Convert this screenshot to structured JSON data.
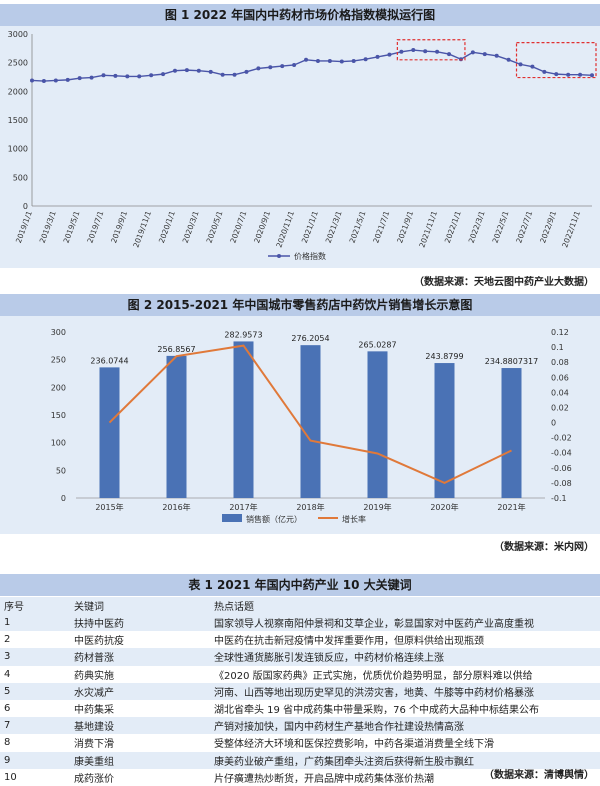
{
  "fig1": {
    "title": "图 1   2022 年国内中药材市场价格指数模拟运行图",
    "source": "（数据来源：天地云图中药产业大数据）",
    "legend": "价格指数"
  },
  "fig2": {
    "title": "图 2   2015-2021 年中国城市零售药店中药饮片销售增长示意图",
    "source": "（数据来源：米内网）",
    "legend_bar": "销售额（亿元）",
    "legend_line": "增长率"
  },
  "table1": {
    "title": "表 1   2021 年国内中药产业 10 大关键词",
    "source": "（数据来源：清博舆情）",
    "headers": [
      "序号",
      "关键词",
      "热点话题"
    ],
    "rows": [
      [
        "1",
        "扶持中医药",
        "国家领导人视察南阳仲景祠和艾草企业，彰显国家对中医药产业高度重视"
      ],
      [
        "2",
        "中医药抗疫",
        "中医药在抗击新冠疫情中发挥重要作用，但原料供给出现瓶颈"
      ],
      [
        "3",
        "药材普涨",
        "全球性通货膨胀引发连锁反应，中药材价格连续上涨"
      ],
      [
        "4",
        "药典实施",
        "《2020 版国家药典》正式实施，优质优价趋势明显，部分原料难以供给"
      ],
      [
        "5",
        "水灾减产",
        "河南、山西等地出现历史罕见的洪涝灾害，地黄、牛膝等中药材价格暴涨"
      ],
      [
        "6",
        "中药集采",
        "湖北省牵头 19 省中成药集中带量采购，76 个中成药大品种中标结果公布"
      ],
      [
        "7",
        "基地建设",
        "产销对接加快，国内中药材生产基地合作社建设热情高涨"
      ],
      [
        "8",
        "消费下滑",
        "受整体经济大环境和医保控费影响，中药各渠道消费量全线下滑"
      ],
      [
        "9",
        "康美重组",
        "康美药业破产重组，广药集团牵头注资后获得新生股市飘红"
      ],
      [
        "10",
        "成药涨价",
        "片仔癀遭热炒断货，开启品牌中成药集体涨价热潮"
      ]
    ]
  },
  "chart_data": [
    {
      "type": "line",
      "title": "图 1   2022 年国内中药材市场价格指数模拟运行图",
      "ylim": [
        0,
        3000
      ],
      "yticks": [
        0,
        500,
        1000,
        1500,
        2000,
        2500,
        3000
      ],
      "xticks": [
        "2019/1/1",
        "2019/3/1",
        "2019/5/1",
        "2019/7/1",
        "2019/9/1",
        "2019/11/1",
        "2020/1/1",
        "2020/3/1",
        "2020/5/1",
        "2020/7/1",
        "2020/9/1",
        "2020/11/1",
        "2021/1/1",
        "2021/3/1",
        "2021/5/1",
        "2021/7/1",
        "2021/9/1",
        "2021/11/1",
        "2022/1/1",
        "2022/3/1",
        "2022/5/1",
        "2022/7/1",
        "2022/9/1",
        "2022/11/1"
      ],
      "series": [
        {
          "name": "价格指数",
          "x": [
            0,
            1,
            2,
            3,
            4,
            5,
            6,
            7,
            8,
            9,
            10,
            11,
            12,
            13,
            14,
            15,
            16,
            17,
            18,
            19,
            20,
            21,
            22,
            23,
            24,
            25,
            26,
            27,
            28,
            29,
            30,
            31,
            32,
            33,
            34,
            35,
            36,
            37,
            38,
            39,
            40,
            41,
            42,
            43,
            44,
            45,
            46,
            47
          ],
          "values": [
            2190,
            2180,
            2190,
            2200,
            2230,
            2240,
            2280,
            2270,
            2260,
            2260,
            2280,
            2300,
            2360,
            2370,
            2360,
            2340,
            2290,
            2290,
            2340,
            2400,
            2420,
            2440,
            2460,
            2550,
            2530,
            2530,
            2520,
            2530,
            2560,
            2600,
            2640,
            2690,
            2720,
            2700,
            2690,
            2650,
            2560,
            2680,
            2650,
            2620,
            2550,
            2470,
            2430,
            2340,
            2300,
            2290,
            2290,
            2280
          ]
        }
      ],
      "legend": "bottom",
      "grid": false
    },
    {
      "type": "bar",
      "title": "图 2   2015-2021 年中国城市零售药店中药饮片销售增长示意图",
      "categories": [
        "2015年",
        "2016年",
        "2017年",
        "2018年",
        "2019年",
        "2020年",
        "2021年"
      ],
      "series": [
        {
          "name": "销售额（亿元）",
          "type": "bar",
          "axis": "left",
          "values": [
            236.0744,
            256.8567,
            282.9573,
            276.2054,
            265.0287,
            243.8799,
            234.8807317
          ],
          "labels": [
            "236.0744",
            "256.8567",
            "282.9573",
            "276.2054",
            "265.0287",
            "243.8799",
            "234.8807317"
          ]
        },
        {
          "name": "增长率",
          "type": "line",
          "axis": "right",
          "values": [
            0.0,
            0.088,
            0.102,
            -0.024,
            -0.041,
            -0.08,
            -0.037
          ]
        }
      ],
      "ylim": [
        0,
        300
      ],
      "yticks": [
        0,
        50,
        100,
        150,
        200,
        250,
        300
      ],
      "y2lim": [
        -0.1,
        0.12
      ],
      "y2ticks": [
        -0.1,
        -0.08,
        -0.06,
        -0.04,
        -0.02,
        0,
        0.02,
        0.04,
        0.06,
        0.08,
        0.1,
        0.12
      ],
      "legend": "bottom",
      "grid": false
    }
  ],
  "colors": {
    "title_bg": "#b9cbe8",
    "panel_bg": "#e3ecf7",
    "line1": "#4a55a8",
    "bar": "#4a72b5",
    "line2": "#e0793a",
    "highlight": "#e03030"
  }
}
